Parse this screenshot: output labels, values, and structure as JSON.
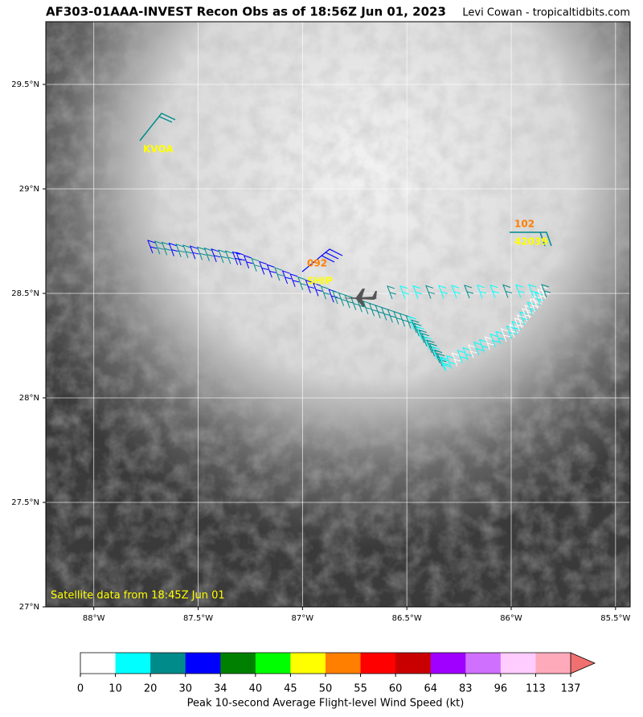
{
  "header": {
    "title": "AF303-01AAA-INVEST Recon Obs as of 18:56Z Jun 01, 2023",
    "credit": "Levi Cowan - tropicaltidbits.com"
  },
  "map": {
    "xlim": [
      -88.23,
      -85.43
    ],
    "ylim": [
      27,
      29.8
    ],
    "xticks": [
      {
        "value": -88,
        "label": "88°W"
      },
      {
        "value": -87.5,
        "label": "87.5°W"
      },
      {
        "value": -87,
        "label": "87°W"
      },
      {
        "value": -86.5,
        "label": "86.5°W"
      },
      {
        "value": -86,
        "label": "86°W"
      },
      {
        "value": -85.5,
        "label": "85.5°W"
      }
    ],
    "yticks": [
      {
        "value": 27,
        "label": "27°N"
      },
      {
        "value": 27.5,
        "label": "27.5°N"
      },
      {
        "value": 28,
        "label": "28°N"
      },
      {
        "value": 28.5,
        "label": "28.5°N"
      },
      {
        "value": 29,
        "label": "29°N"
      },
      {
        "value": 29.5,
        "label": "29.5°N"
      }
    ],
    "grid": true,
    "stations": [
      {
        "label": "KVOA",
        "color": "#ffff00"
      },
      {
        "label": "092",
        "color": "#ff7f00"
      },
      {
        "label": "SHIP",
        "color": "#ffff00"
      },
      {
        "label": "102",
        "color": "#ff7f00"
      },
      {
        "label": "42039",
        "color": "#ffff00"
      }
    ],
    "satellite_note": "Satellite data from 18:45Z Jun 01"
  },
  "colorbar": {
    "bounds": [
      0,
      10,
      20,
      30,
      34,
      40,
      45,
      50,
      55,
      60,
      64,
      83,
      96,
      113,
      137
    ],
    "colors": [
      "#ffffff",
      "#00ffff",
      "#008b8b",
      "#0000ff",
      "#008000",
      "#00ff00",
      "#ffff00",
      "#ff7f00",
      "#ff0000",
      "#c80000",
      "#a000ff",
      "#d070ff",
      "#ffccff",
      "#ffaabb"
    ],
    "extend_color": "#f07070",
    "label": "Peak 10-second Average Flight-level Wind Speed (kt)"
  }
}
